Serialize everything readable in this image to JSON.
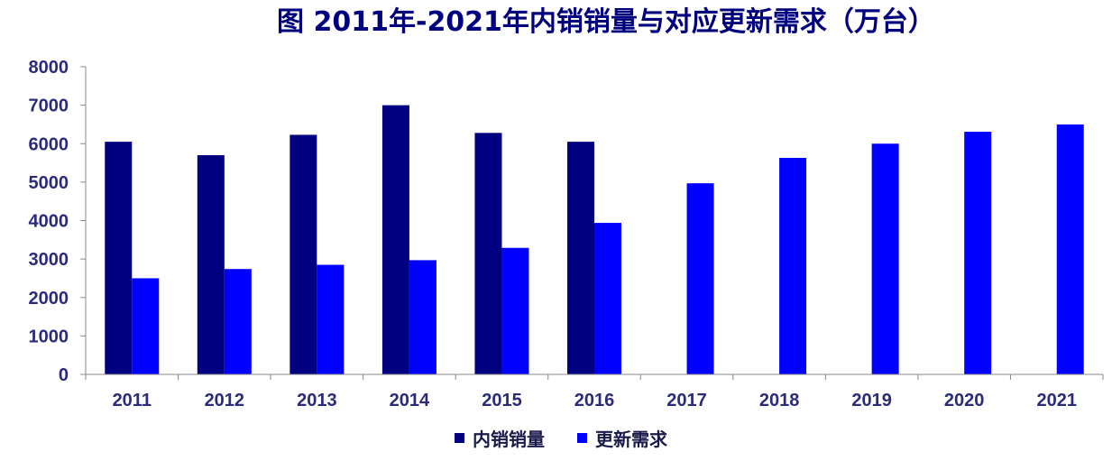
{
  "chart_data": {
    "type": "bar",
    "title": "图 2011年-2021年内销销量与对应更新需求（万台）",
    "categories": [
      "2011",
      "2012",
      "2013",
      "2014",
      "2015",
      "2016",
      "2017",
      "2018",
      "2019",
      "2020",
      "2021"
    ],
    "series": [
      {
        "name": "内销销量",
        "color": "#000080",
        "values": [
          6050,
          5700,
          6230,
          7000,
          6280,
          6050,
          null,
          null,
          null,
          null,
          null
        ]
      },
      {
        "name": "更新需求",
        "color": "#0000ff",
        "values": [
          2500,
          2740,
          2850,
          2970,
          3290,
          3940,
          4970,
          5630,
          6000,
          6310,
          6500
        ]
      }
    ],
    "ylim": [
      0,
      8000
    ],
    "yticks": [
      "0",
      "1000",
      "2000",
      "3000",
      "4000",
      "5000",
      "6000",
      "7000",
      "8000"
    ],
    "legend_position": "bottom",
    "grid": false
  }
}
